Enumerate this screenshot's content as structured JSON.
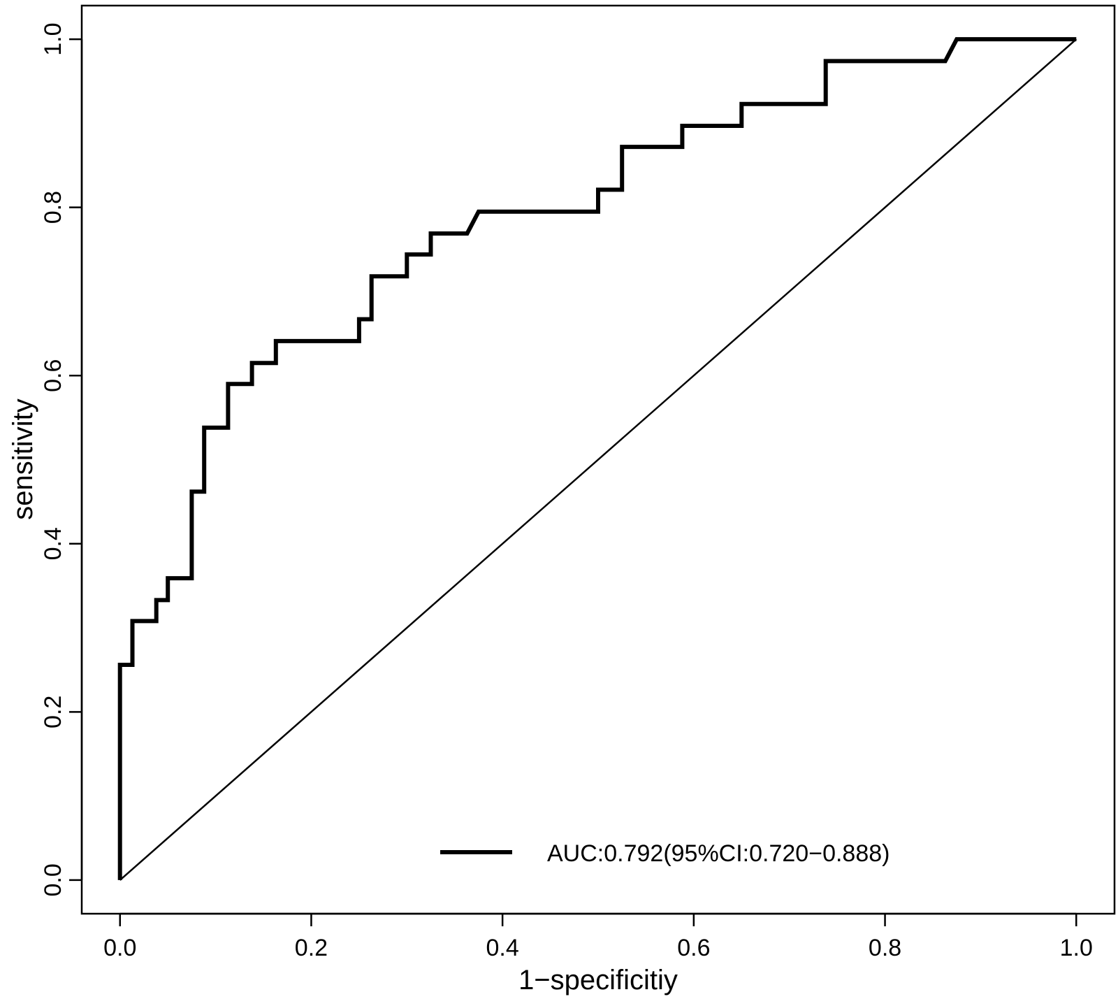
{
  "chart_data": {
    "type": "line",
    "xlabel": "1−specificitiy",
    "ylabel": "sensitivity",
    "xlim": [
      -0.04,
      1.04
    ],
    "ylim": [
      -0.04,
      1.04
    ],
    "x_ticks": [
      "0.0",
      "0.2",
      "0.4",
      "0.6",
      "0.8",
      "1.0"
    ],
    "y_ticks": [
      "0.0",
      "0.2",
      "0.4",
      "0.6",
      "0.8",
      "1.0"
    ],
    "grid": false,
    "legend_position": "bottom-right",
    "series": [
      {
        "name": "AUC:0.792(95%CI:0.720−0.888)",
        "style": "thick",
        "color": "#000000",
        "x": [
          0.0,
          0.0,
          0.013,
          0.013,
          0.038,
          0.038,
          0.05,
          0.05,
          0.075,
          0.075,
          0.088,
          0.088,
          0.113,
          0.113,
          0.138,
          0.138,
          0.163,
          0.163,
          0.25,
          0.25,
          0.263,
          0.263,
          0.3,
          0.3,
          0.325,
          0.325,
          0.363,
          0.375,
          0.5,
          0.5,
          0.525,
          0.525,
          0.588,
          0.588,
          0.65,
          0.65,
          0.738,
          0.738,
          0.863,
          0.875,
          1.0
        ],
        "y": [
          0.0,
          0.256,
          0.256,
          0.308,
          0.308,
          0.333,
          0.333,
          0.359,
          0.359,
          0.462,
          0.462,
          0.538,
          0.538,
          0.59,
          0.59,
          0.615,
          0.615,
          0.641,
          0.641,
          0.667,
          0.667,
          0.718,
          0.718,
          0.744,
          0.744,
          0.769,
          0.769,
          0.795,
          0.795,
          0.821,
          0.821,
          0.872,
          0.872,
          0.897,
          0.897,
          0.923,
          0.923,
          0.974,
          0.974,
          1.0,
          1.0
        ]
      },
      {
        "name": "",
        "style": "thin",
        "color": "#000000",
        "x": [
          0.0,
          1.0
        ],
        "y": [
          0.0,
          1.0
        ]
      }
    ]
  }
}
